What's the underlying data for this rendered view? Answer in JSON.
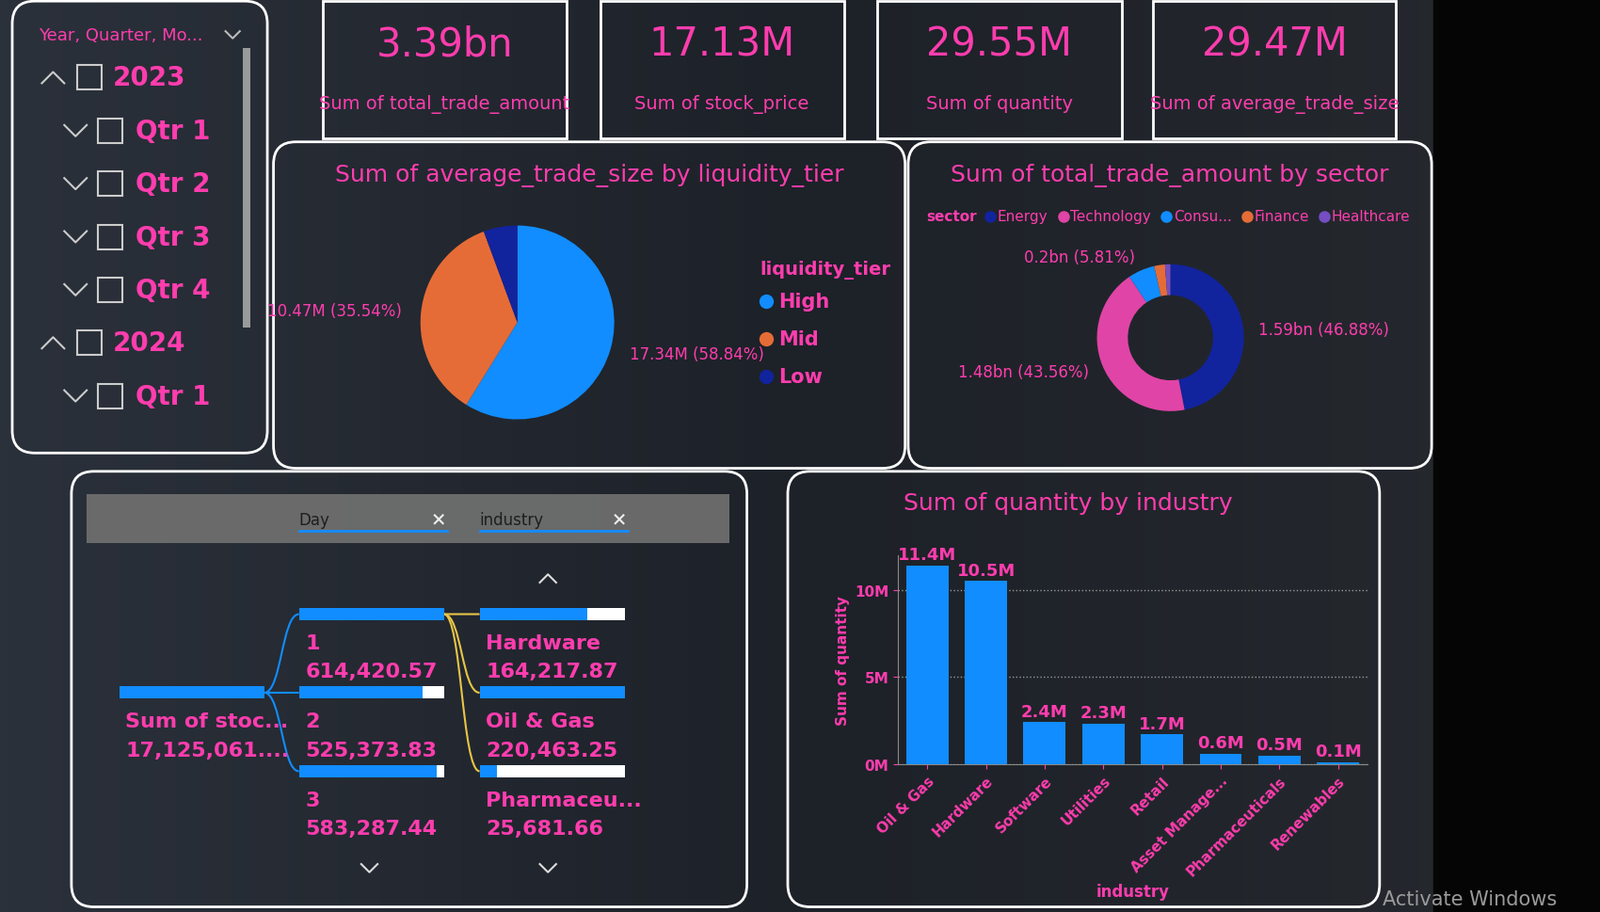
{
  "slicer": {
    "title": "Year, Quarter, Mo...",
    "items": [
      "2023",
      "Qtr 1",
      "Qtr 2",
      "Qtr 3",
      "Qtr 4",
      "2024",
      "Qtr 1"
    ]
  },
  "cards": [
    {
      "value": "3.39bn",
      "label": "Sum of total_trade_amount"
    },
    {
      "value": "17.13M",
      "label": "Sum of stock_price"
    },
    {
      "value": "29.55M",
      "label": "Sum of quantity"
    },
    {
      "value": "29.47M",
      "label": "Sum of average_trade_size"
    }
  ],
  "chart_data": [
    {
      "type": "pie",
      "title": "Sum of average_trade_size by liquidity_tier",
      "legend_title": "liquidity_tier",
      "categories": [
        "High",
        "Mid",
        "Low"
      ],
      "values": [
        17.34,
        10.47,
        1.66
      ],
      "value_labels": [
        "17.34M (58.84%)",
        "10.47M (35.54%)",
        null
      ],
      "colors": [
        "#118DFF",
        "#E66C37",
        "#12239E"
      ],
      "data_labels": true,
      "legend": "right"
    },
    {
      "type": "donut",
      "title": "Sum of total_trade_amount by sector",
      "legend_title": "sector",
      "categories": [
        "Energy",
        "Technology",
        "Consu...",
        "Finance",
        "Healthcare"
      ],
      "values": [
        1.59,
        1.48,
        0.2,
        0.08,
        0.04
      ],
      "value_labels": [
        "1.59bn (46.88%)",
        "1.48bn (43.56%)",
        "0.2bn (5.81%)",
        null,
        null
      ],
      "colors": [
        "#12239E",
        "#E044A7",
        "#118DFF",
        "#E66C37",
        "#744EC2"
      ],
      "data_labels": true,
      "legend": "top"
    },
    {
      "type": "bar",
      "title": "Sum of quantity by industry",
      "xlabel": "industry",
      "ylabel": "Sum of quantity",
      "categories": [
        "Oil & Gas",
        "Hardware",
        "Software",
        "Utilities",
        "Retail",
        "Asset Manage...",
        "Pharmaceuticals",
        "Renewables"
      ],
      "values": [
        11.4,
        10.5,
        2.4,
        2.3,
        1.7,
        0.6,
        0.5,
        0.1
      ],
      "value_labels": [
        "11.4M",
        "10.5M",
        "2.4M",
        "2.3M",
        "1.7M",
        "0.6M",
        "0.5M",
        "0.1M"
      ],
      "color": "#118DFF",
      "ylim": [
        0,
        12
      ],
      "yticks": [
        {
          "value": 0,
          "label": "0M"
        },
        {
          "value": 5,
          "label": "5M"
        },
        {
          "value": 10,
          "label": "10M"
        }
      ],
      "grid": true,
      "data_labels": true
    }
  ],
  "decomposition_tree": {
    "filters": [
      "Day",
      "industry"
    ],
    "root": {
      "label": "Sum of stoc...",
      "value_label": "17,125,061...."
    },
    "levels": [
      [
        {
          "label": "1",
          "value": 614420.57,
          "value_label": "614,420.57"
        },
        {
          "label": "2",
          "value": 525373.83,
          "value_label": "525,373.83"
        },
        {
          "label": "3",
          "value": 583287.44,
          "value_label": "583,287.44"
        }
      ],
      [
        {
          "label": "Hardware",
          "value": 164217.87,
          "value_label": "164,217.87"
        },
        {
          "label": "Oil & Gas",
          "value": 220463.25,
          "value_label": "220,463.25"
        },
        {
          "label": "Pharmaceu...",
          "value": 25681.66,
          "value_label": "25,681.66"
        }
      ]
    ]
  },
  "footer": "Activate Windows"
}
